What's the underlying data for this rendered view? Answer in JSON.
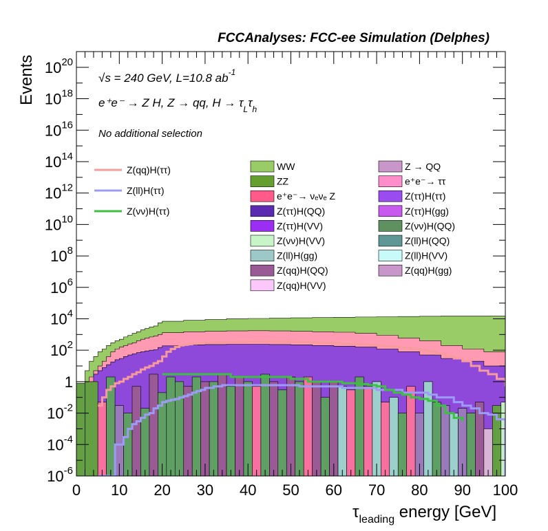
{
  "chart_data": {
    "type": "area",
    "title": "FCCAnalyses: FCC-ee Simulation (Delphes)",
    "annotations": {
      "energy_lumi": "√s = 240 GeV, L=10.8 ab",
      "energy_lumi_sup": "-1",
      "process": "e⁺e⁻ → Z H, Z → qq, H → τ",
      "process_sub_l": "L",
      "process_tau": "τ",
      "process_sub_h": "h",
      "selection": "No additional selection"
    },
    "xlabel_main": "τ",
    "xlabel_sub": "leading",
    "xlabel_rest": " energy [GeV]",
    "ylabel": "Events",
    "y_scale": "log",
    "xlim": [
      0,
      100
    ],
    "ylim": [
      1e-06,
      1e+21
    ],
    "x_ticks": [
      "0",
      "10",
      "20",
      "30",
      "40",
      "50",
      "60",
      "70",
      "80",
      "90",
      "100"
    ],
    "y_ticks": [
      {
        "base": "10",
        "exp": "-6",
        "val": 1e-06
      },
      {
        "base": "10",
        "exp": "-4",
        "val": 0.0001
      },
      {
        "base": "10",
        "exp": "-2",
        "val": 0.01
      },
      {
        "base": "1",
        "exp": "",
        "val": 1
      },
      {
        "base": "10",
        "exp": "2",
        "val": 100.0
      },
      {
        "base": "10",
        "exp": "4",
        "val": 10000.0
      },
      {
        "base": "10",
        "exp": "6",
        "val": 1000000.0
      },
      {
        "base": "10",
        "exp": "8",
        "val": 100000000.0
      },
      {
        "base": "10",
        "exp": "10",
        "val": 10000000000.0
      },
      {
        "base": "10",
        "exp": "12",
        "val": 1000000000000.0
      },
      {
        "base": "10",
        "exp": "14",
        "val": 100000000000000.0
      },
      {
        "base": "10",
        "exp": "16",
        "val": 1e+16
      },
      {
        "base": "10",
        "exp": "18",
        "val": 1e+18
      },
      {
        "base": "10",
        "exp": "20",
        "val": 1e+20
      }
    ],
    "stack_envelope": {
      "x": [
        1,
        2,
        3,
        4,
        5,
        6,
        7,
        8,
        9,
        10,
        11,
        12,
        13,
        14,
        15,
        16,
        17,
        18,
        19,
        20,
        25,
        30,
        35,
        40,
        45,
        50,
        55,
        60,
        65,
        70,
        75,
        80,
        85,
        90,
        95,
        100
      ],
      "total": [
        0.3,
        0.4,
        5,
        20,
        40,
        80,
        120,
        200,
        300,
        400,
        500,
        700,
        900,
        1200,
        1500,
        2000,
        2500,
        3000,
        3500,
        5500,
        7000,
        8000,
        9000,
        10000,
        10500,
        11000,
        11500,
        12000,
        12500,
        13000,
        13500,
        14000,
        14500,
        15000,
        15000,
        15000
      ],
      "zqq": [
        0.01,
        0.02,
        0.5,
        2,
        5,
        10,
        20,
        40,
        80,
        120,
        160,
        200,
        250,
        300,
        400,
        500,
        600,
        700,
        800,
        1000,
        1300,
        1500,
        1600,
        1700,
        1750,
        1700,
        1600,
        1500,
        1400,
        1200,
        900,
        600,
        400,
        200,
        120,
        80
      ],
      "mid": [
        0.005,
        0.01,
        0.2,
        1,
        3,
        5,
        8,
        12,
        18,
        25,
        30,
        40,
        50,
        60,
        70,
        80,
        90,
        100,
        110,
        150,
        190,
        220,
        230,
        240,
        240,
        230,
        220,
        200,
        180,
        160,
        120,
        80,
        50,
        30,
        20,
        10
      ]
    },
    "bars_backdrop": {
      "x": [
        0,
        2,
        5,
        7,
        9,
        11,
        13,
        15,
        17,
        19,
        21,
        23,
        25,
        27,
        29,
        31,
        33,
        35,
        37,
        39,
        41,
        43,
        45,
        47,
        49,
        51,
        53,
        55,
        57,
        59,
        61,
        63,
        65,
        67,
        69,
        71,
        73,
        75,
        77,
        79,
        81,
        83,
        85,
        87,
        89,
        91,
        93,
        95,
        97,
        99
      ],
      "values": [
        0.8,
        1,
        0.05,
        2,
        0.03,
        0.01,
        0.5,
        0.02,
        3,
        0.2,
        2,
        1,
        0.5,
        2,
        1,
        1,
        3,
        0.5,
        2,
        1,
        0.5,
        3,
        1,
        0.3,
        2,
        1,
        2,
        1,
        0.1,
        1,
        0.5,
        0.3,
        2,
        0.5,
        1,
        0.05,
        0.1,
        0.01,
        0.5,
        0.01,
        1,
        0.05,
        0.03,
        0.01,
        0.02,
        0.01,
        0.05,
        0.001,
        0.03,
        0.05
      ],
      "colors": [
        "#649f44",
        "#649f44",
        "#f870a0",
        "#5f9f64",
        "#9a7abb",
        "#5f9f64",
        "#9a5a95",
        "#5f9f64",
        "#9a5a95",
        "#5f9f64",
        "#5f9f64",
        "#5f9f64",
        "#9a5a95",
        "#5f9f64",
        "#9a5a95",
        "#5f9f64",
        "#9a5a95",
        "#5f9f64",
        "#9a5a95",
        "#5f9f64",
        "#f870a0",
        "#5f9f64",
        "#9a5a95",
        "#5f9f64",
        "#9a5a95",
        "#5f9f64",
        "#f870a0",
        "#9a5a95",
        "#5f9f64",
        "#9a5a95",
        "#9cd0cd",
        "#f870a0",
        "#5f9f64",
        "#f870a0",
        "#9cd0cd",
        "#f870a0",
        "#9cd0cd",
        "#5f9f64",
        "#f870a0",
        "#9a7abb",
        "#9cd0cd",
        "#5f9f64",
        "#9a7abb",
        "#9cd0cd",
        "#9a7abb",
        "#5f9f64",
        "#9a5a95",
        "#d8b4d8",
        "#649f44",
        "#c8ecc8"
      ]
    },
    "lines": [
      {
        "name": "Z(qq)H(ττ)",
        "color": "#f79c9c",
        "x": [
          5,
          6,
          7,
          8,
          9,
          10,
          11,
          12,
          13,
          14,
          15,
          16,
          17,
          18,
          19,
          20,
          21,
          22,
          23,
          24,
          25,
          26,
          27,
          28,
          29,
          30,
          32,
          34,
          36,
          38,
          40,
          42,
          44,
          46,
          48,
          50,
          52,
          54,
          56,
          58,
          60,
          62,
          64,
          66,
          68,
          70,
          72,
          74,
          76,
          78,
          80,
          82,
          84,
          86,
          88,
          90,
          92,
          94,
          96,
          98,
          100
        ],
        "y": [
          0.03,
          0.1,
          0.3,
          0.5,
          0.8,
          1,
          1.5,
          2,
          3,
          4,
          6,
          8,
          10,
          15,
          20,
          40,
          80,
          120,
          160,
          200,
          220,
          240,
          260,
          280,
          290,
          300,
          310,
          320,
          330,
          340,
          350,
          350,
          350,
          350,
          350,
          340,
          330,
          320,
          300,
          290,
          280,
          260,
          250,
          240,
          220,
          200,
          180,
          160,
          140,
          120,
          100,
          80,
          60,
          40,
          30,
          20,
          10,
          5,
          3,
          1.5,
          0.5
        ]
      },
      {
        "name": "Z(ll)H(ττ)",
        "color": "#9c9cf7",
        "x": [
          5,
          7,
          9,
          11,
          12,
          13,
          14,
          15,
          16,
          17,
          18,
          19,
          20,
          21,
          22,
          23,
          24,
          25,
          26,
          27,
          28,
          29,
          30,
          32,
          34,
          36,
          38,
          40,
          42,
          44,
          46,
          48,
          50,
          52,
          54,
          56,
          58,
          60,
          62,
          64,
          66,
          68,
          70,
          72,
          74,
          76,
          78,
          80,
          82,
          84,
          86,
          88,
          90,
          92,
          94,
          96,
          98,
          100
        ],
        "y": [
          1e-06,
          1e-06,
          0.0001,
          0.0003,
          0.001,
          0.002,
          0.003,
          0.005,
          0.008,
          0.01,
          0.02,
          0.03,
          0.05,
          0.06,
          0.07,
          0.08,
          0.1,
          0.12,
          0.15,
          0.2,
          0.25,
          0.3,
          0.4,
          0.5,
          0.6,
          0.6,
          0.6,
          0.6,
          0.6,
          0.6,
          0.6,
          0.6,
          0.6,
          0.5,
          0.5,
          0.5,
          0.5,
          0.5,
          0.4,
          0.4,
          0.4,
          0.4,
          0.3,
          0.3,
          0.3,
          0.2,
          0.2,
          0.2,
          0.15,
          0.1,
          0.1,
          0.05,
          0.03,
          0.02,
          0.01,
          0.008,
          0.004,
          1e-06
        ]
      },
      {
        "name": "Z(νν)H(ττ)",
        "color": "#3cc040",
        "x": [
          20,
          22,
          24,
          26,
          28,
          30,
          32,
          34,
          36,
          38,
          40,
          42,
          44,
          46,
          48,
          50,
          52,
          54,
          56,
          58,
          60,
          62,
          64,
          66,
          68,
          70,
          72,
          74,
          76,
          78,
          80,
          82,
          84,
          86,
          88,
          90
        ],
        "y": [
          3,
          3,
          3,
          3,
          3,
          3,
          3,
          3,
          2,
          2,
          2,
          2,
          2,
          2,
          2,
          1.5,
          1.5,
          1,
          1,
          1,
          1,
          0.8,
          0.8,
          0.7,
          0.6,
          0.5,
          0.3,
          0.2,
          0.15,
          0.1,
          0.08,
          0.06,
          0.03,
          0.01,
          0.005,
          0.003
        ]
      }
    ],
    "legend_lines": [
      {
        "name": "Z(qq)H(ττ)",
        "color": "#f79c9c"
      },
      {
        "name": "Z(ll)H(ττ)",
        "color": "#9c9cf7"
      },
      {
        "name": "Z(νν)H(ττ)",
        "color": "#3cc040"
      }
    ],
    "legend_col1": [
      {
        "label": "WW",
        "color": "#99cc66"
      },
      {
        "label": "ZZ",
        "color": "#649f2f"
      },
      {
        "label": "e⁺e⁻→ νₑνₑ Z",
        "color": "#ff5a8a"
      },
      {
        "label": "Z(ττ)H(QQ)",
        "color": "#5a2ab0"
      },
      {
        "label": "Z(ττ)H(VV)",
        "color": "#9a2ef2"
      },
      {
        "label": "Z(νν)H(VV)",
        "color": "#c8f5c8"
      },
      {
        "label": "Z(ll)H(gg)",
        "color": "#9cc8c8"
      },
      {
        "label": "Z(qq)H(QQ)",
        "color": "#9a5a95"
      },
      {
        "label": "Z(qq)H(VV)",
        "color": "#fcc8fc"
      }
    ],
    "legend_col2": [
      {
        "label": "Z → QQ",
        "color": "#c896c8"
      },
      {
        "label": "e⁺e⁻→ ττ",
        "color": "#ff8ccb"
      },
      {
        "label": "Z(ττ)H(ττ)",
        "color": "#9a4cf0"
      },
      {
        "label": "Z(ττ)H(gg)",
        "color": "#c85af0"
      },
      {
        "label": "Z(νν)H(QQ)",
        "color": "#5f9060"
      },
      {
        "label": "Z(ll)H(QQ)",
        "color": "#5f9696"
      },
      {
        "label": "Z(ll)H(VV)",
        "color": "#c8fafa"
      },
      {
        "label": "Z(qq)H(gg)",
        "color": "#c896c8"
      }
    ],
    "colors": {
      "ww": "#99cc66",
      "zqq_band": "#ff9ab2",
      "zz": "#649f2f",
      "purple_band": "#7a3ae0"
    }
  }
}
